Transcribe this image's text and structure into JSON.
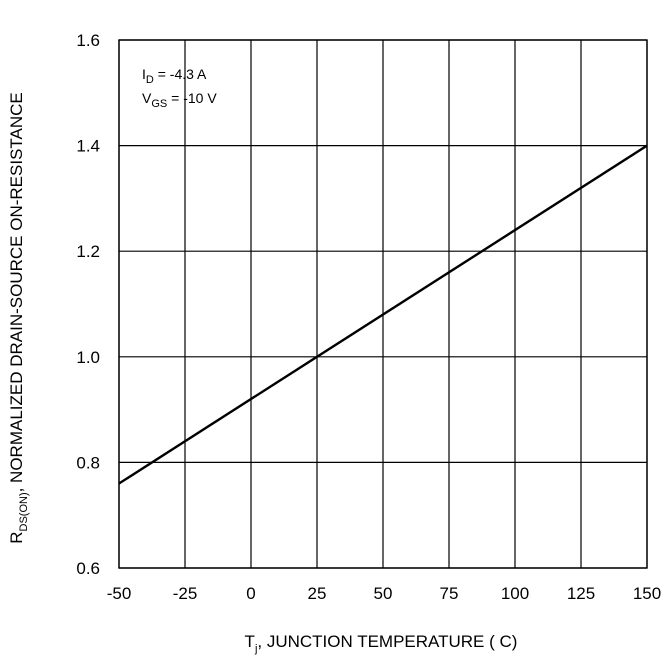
{
  "chart_data": {
    "type": "line",
    "x": [
      -50,
      150
    ],
    "series": [
      {
        "values": [
          0.76,
          1.4
        ]
      }
    ],
    "x_ticks": [
      -50,
      -25,
      0,
      25,
      50,
      75,
      100,
      125,
      150
    ],
    "y_ticks": [
      "0.6",
      "0.8",
      "1.0",
      "1.2",
      "1.4",
      "1.6"
    ],
    "xlim": [
      -50,
      150
    ],
    "ylim": [
      0.6,
      1.6
    ],
    "grid": true,
    "xlabel": {
      "main": "T",
      "sub": "j",
      "rest": ", JUNCTION TEMPERATURE ( C)"
    },
    "ylabel": {
      "main": "R",
      "sub": "DS(ON)",
      "rest": ", NORMALIZED DRAIN-SOURCE ON-RESISTANCE"
    },
    "annotations": [
      {
        "main": "I",
        "sub": "D",
        "rest": " = -4.3 A"
      },
      {
        "main": "V",
        "sub": "GS",
        "rest": " = -10 V"
      }
    ],
    "colors": {
      "line": "#000000",
      "grid": "#000000"
    }
  }
}
